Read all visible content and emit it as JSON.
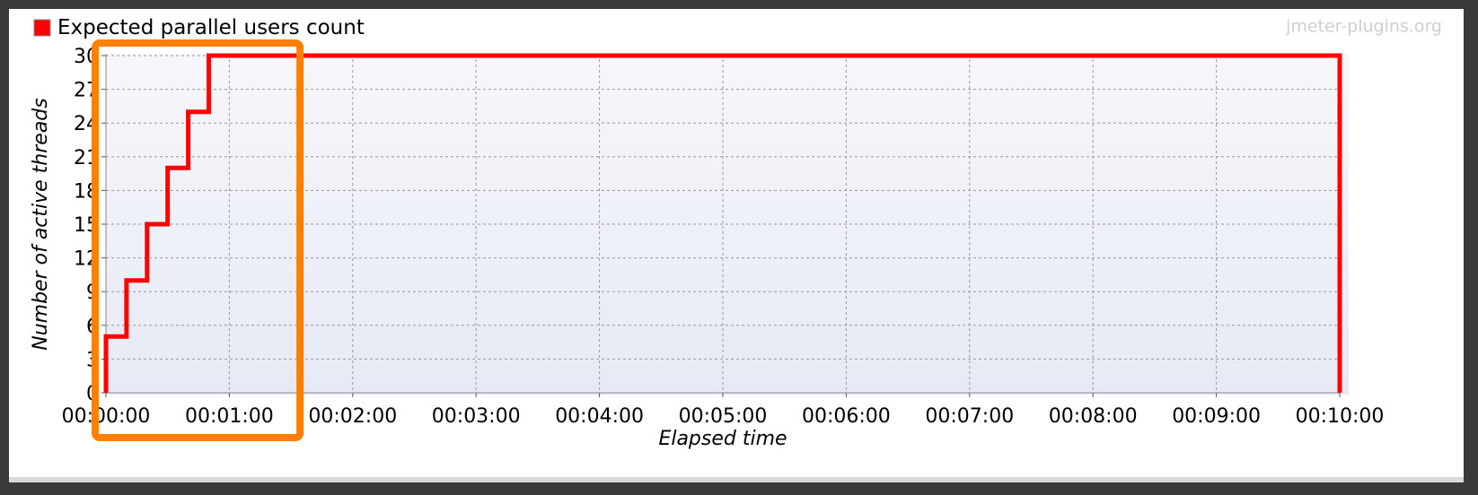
{
  "chart_data": {
    "type": "line",
    "watermark": "jmeter-plugins.org",
    "xlabel": "Elapsed time",
    "ylabel": "Number of active threads",
    "ylim": [
      0,
      30
    ],
    "xlim_seconds": [
      0,
      600
    ],
    "x_tick_labels": [
      "00:00:00",
      "00:01:00",
      "00:02:00",
      "00:03:00",
      "00:04:00",
      "00:05:00",
      "00:06:00",
      "00:07:00",
      "00:08:00",
      "00:09:00",
      "00:10:00"
    ],
    "y_tick_labels": [
      "0",
      "3",
      "6",
      "9",
      "12",
      "15",
      "18",
      "21",
      "24",
      "27",
      "30"
    ],
    "grid": true,
    "legend_position": "top-left",
    "series": [
      {
        "name": "Expected parallel users count",
        "color": "#ff0000",
        "x": [
          "00:00:00",
          "00:00:00",
          "00:00:10",
          "00:00:10",
          "00:00:20",
          "00:00:20",
          "00:00:30",
          "00:00:30",
          "00:00:40",
          "00:00:40",
          "00:00:50",
          "00:00:50",
          "00:10:00",
          "00:10:00"
        ],
        "y": [
          0,
          5,
          5,
          10,
          10,
          15,
          15,
          20,
          20,
          25,
          25,
          30,
          30,
          0
        ]
      }
    ],
    "annotation": {
      "type": "highlight-box",
      "color": "#ff7f00",
      "x_range": [
        "00:00:00",
        "00:01:30"
      ]
    },
    "plot_background": "#edf0f7"
  }
}
